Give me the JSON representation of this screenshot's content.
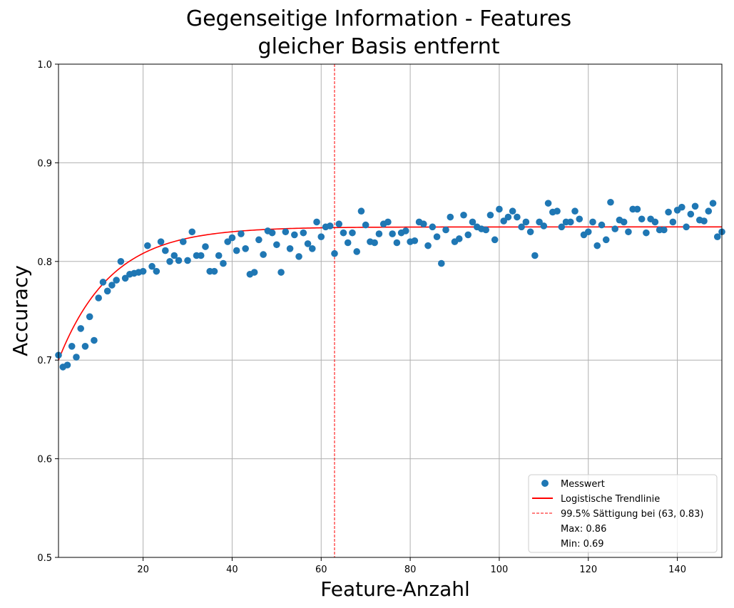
{
  "chart_data": {
    "type": "scatter",
    "title_lines": [
      "Gegenseitige Information - Features",
      "gleicher Basis entfernt"
    ],
    "xlabel": "Feature-Anzahl",
    "ylabel": "Accuracy",
    "xlim": [
      1,
      150
    ],
    "ylim": [
      0.5,
      1.0
    ],
    "x_ticks": [
      20,
      40,
      60,
      80,
      100,
      120,
      140
    ],
    "y_ticks": [
      0.5,
      0.6,
      0.7,
      0.8,
      0.9,
      1.0
    ],
    "x_tick_labels": [
      "20",
      "40",
      "60",
      "80",
      "100",
      "120",
      "140"
    ],
    "y_tick_labels": [
      "0.5",
      "0.6",
      "0.7",
      "0.8",
      "0.9",
      "1.0"
    ],
    "grid": true,
    "legend_position": "bottom-right",
    "colors": {
      "points": "#1f77b4",
      "trend": "#ff0000",
      "saturation": "#ff0000",
      "grid": "#b0b0b0"
    },
    "legend": [
      {
        "label": "Messwert",
        "marker": "dot"
      },
      {
        "label": "Logistische Trendlinie",
        "marker": "line"
      },
      {
        "label": "99.5% Sättigung bei (63, 0.83)",
        "marker": "dashed"
      },
      {
        "label": "Max: 0.86",
        "marker": "none"
      },
      {
        "label": "Min: 0.69",
        "marker": "none"
      }
    ],
    "saturation_x": 63,
    "trend": {
      "model": "A - (A - y0) * exp(-k * (x - 1))",
      "A": 0.835,
      "y0": 0.7,
      "k": 0.085
    },
    "series": [
      {
        "name": "Messwert",
        "x": [
          1,
          2,
          3,
          4,
          5,
          6,
          7,
          8,
          9,
          10,
          11,
          12,
          13,
          14,
          15,
          16,
          17,
          18,
          19,
          20,
          21,
          22,
          23,
          24,
          25,
          26,
          27,
          28,
          29,
          30,
          31,
          32,
          33,
          34,
          35,
          36,
          37,
          38,
          39,
          40,
          41,
          42,
          43,
          44,
          45,
          46,
          47,
          48,
          49,
          50,
          51,
          52,
          53,
          54,
          55,
          56,
          57,
          58,
          59,
          60,
          61,
          62,
          63,
          64,
          65,
          66,
          67,
          68,
          69,
          70,
          71,
          72,
          73,
          74,
          75,
          76,
          77,
          78,
          79,
          80,
          81,
          82,
          83,
          84,
          85,
          86,
          87,
          88,
          89,
          90,
          91,
          92,
          93,
          94,
          95,
          96,
          97,
          98,
          99,
          100,
          101,
          102,
          103,
          104,
          105,
          106,
          107,
          108,
          109,
          110,
          111,
          112,
          113,
          114,
          115,
          116,
          117,
          118,
          119,
          120,
          121,
          122,
          123,
          124,
          125,
          126,
          127,
          128,
          129,
          130,
          131,
          132,
          133,
          134,
          135,
          136,
          137,
          138,
          139,
          140,
          141,
          142,
          143,
          144,
          145,
          146,
          147,
          148,
          149,
          150
        ],
        "y": [
          0.705,
          0.693,
          0.695,
          0.714,
          0.703,
          0.732,
          0.714,
          0.744,
          0.72,
          0.763,
          0.779,
          0.77,
          0.776,
          0.781,
          0.8,
          0.783,
          0.787,
          0.788,
          0.789,
          0.79,
          0.816,
          0.795,
          0.79,
          0.82,
          0.811,
          0.8,
          0.806,
          0.801,
          0.82,
          0.801,
          0.83,
          0.806,
          0.806,
          0.815,
          0.79,
          0.79,
          0.806,
          0.798,
          0.82,
          0.824,
          0.811,
          0.828,
          0.813,
          0.787,
          0.789,
          0.822,
          0.807,
          0.831,
          0.829,
          0.817,
          0.789,
          0.83,
          0.813,
          0.827,
          0.805,
          0.829,
          0.818,
          0.813,
          0.84,
          0.825,
          0.835,
          0.836,
          0.808,
          0.838,
          0.829,
          0.819,
          0.829,
          0.81,
          0.851,
          0.837,
          0.82,
          0.819,
          0.828,
          0.838,
          0.84,
          0.828,
          0.819,
          0.829,
          0.831,
          0.82,
          0.821,
          0.84,
          0.838,
          0.816,
          0.835,
          0.825,
          0.798,
          0.832,
          0.845,
          0.82,
          0.823,
          0.847,
          0.827,
          0.84,
          0.835,
          0.833,
          0.832,
          0.847,
          0.822,
          0.853,
          0.841,
          0.845,
          0.851,
          0.845,
          0.835,
          0.84,
          0.83,
          0.806,
          0.84,
          0.836,
          0.859,
          0.85,
          0.851,
          0.835,
          0.84,
          0.84,
          0.851,
          0.843,
          0.827,
          0.83,
          0.84,
          0.816,
          0.837,
          0.822,
          0.86,
          0.833,
          0.842,
          0.84,
          0.83,
          0.853,
          0.853,
          0.843,
          0.829,
          0.843,
          0.84,
          0.832,
          0.832,
          0.85,
          0.84,
          0.852,
          0.855,
          0.835,
          0.848,
          0.856,
          0.842,
          0.841,
          0.851,
          0.859,
          0.825,
          0.83
        ]
      }
    ]
  }
}
